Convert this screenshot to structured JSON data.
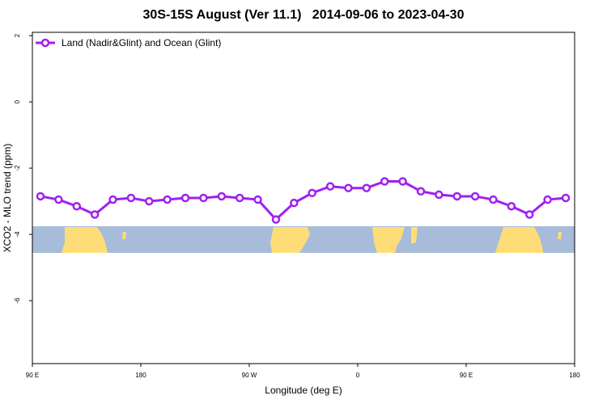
{
  "chart_data": {
    "type": "line",
    "title": "30S-15S August (Ver 11.1)   2014-09-06 to 2023-04-30",
    "xlabel": "Longitude (deg E)",
    "ylabel": "XCO2 - MLO trend (ppm)",
    "x_ticks": [
      "90 E",
      "180",
      "90 W",
      "0",
      "90 E",
      "180"
    ],
    "y_ticks": [
      "2",
      "0",
      "-2",
      "-4",
      "-6"
    ],
    "y_tick_values": [
      2,
      0,
      -2,
      -4,
      -6
    ],
    "ylim": [
      -7.9,
      2.1
    ],
    "legend_position": "top-left",
    "color": "#a020f0",
    "series": [
      {
        "name": "Land (Nadir&Glint) and Ocean (Glint)",
        "values": [
          -2.85,
          -2.95,
          -3.15,
          -3.4,
          -2.95,
          -2.9,
          -3.0,
          -2.95,
          -2.9,
          -2.9,
          -2.85,
          -2.9,
          -2.95,
          -3.55,
          -3.05,
          -2.75,
          -2.55,
          -2.6,
          -2.6,
          -2.4,
          -2.4,
          -2.7,
          -2.8,
          -2.85,
          -2.85,
          -2.95,
          -3.15,
          -3.4,
          -2.95,
          -2.9
        ]
      }
    ]
  }
}
